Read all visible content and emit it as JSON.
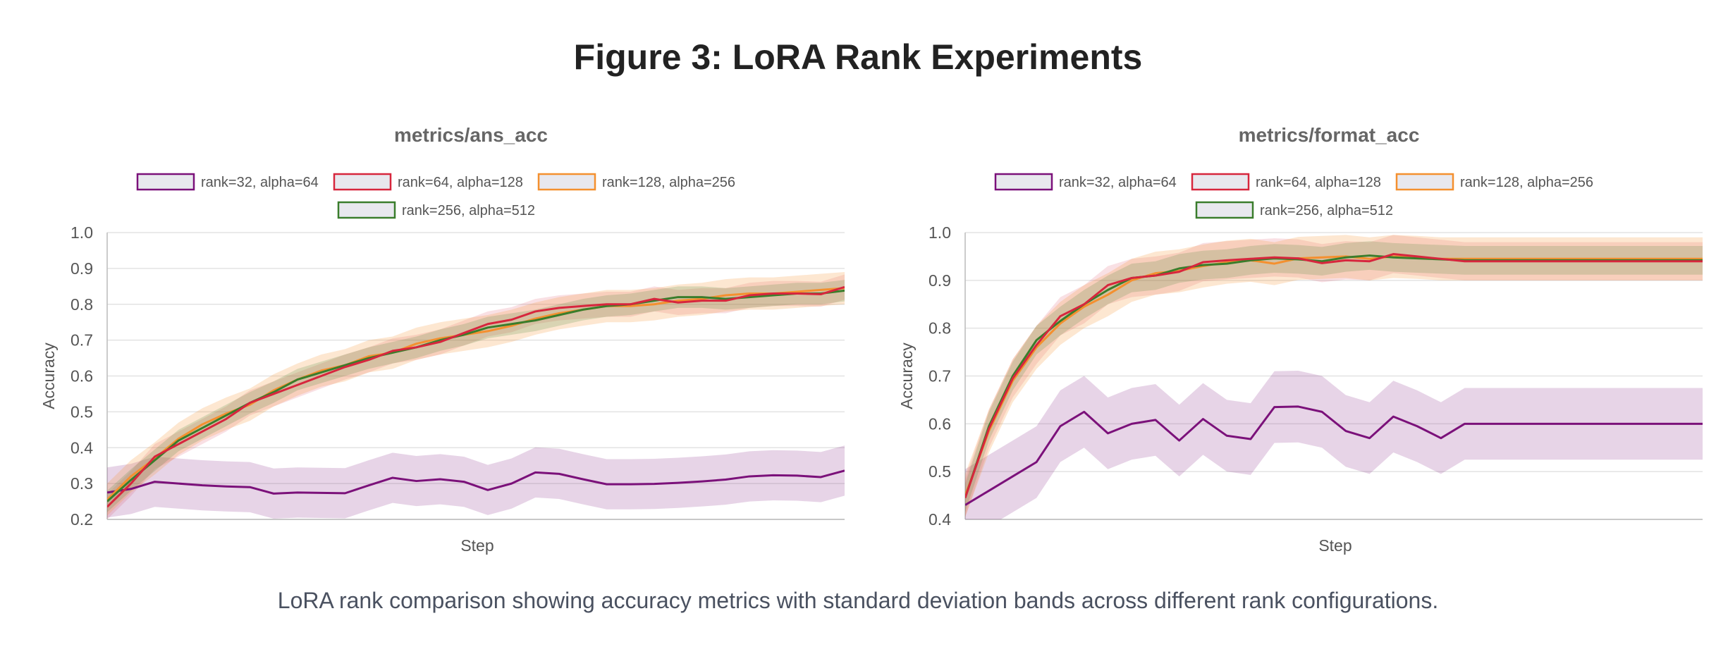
{
  "figure": {
    "title": "Figure 3: LoRA Rank Experiments",
    "caption": "LoRA rank comparison showing accuracy metrics with standard deviation bands across different rank configurations."
  },
  "colors": {
    "rank=32, alpha=64": "#7b117a",
    "rank=64, alpha=128": "#d7263d",
    "rank=128, alpha=256": "#f4902f",
    "rank=256, alpha=512": "#3a7d2c"
  },
  "chart_data": [
    {
      "type": "line",
      "title": "metrics/ans_acc",
      "xlabel": "Step",
      "ylabel": "Accuracy",
      "ylim": [
        0.2,
        1.0
      ],
      "yticks": [
        "0.2",
        "0.3",
        "0.4",
        "0.5",
        "0.6",
        "0.7",
        "0.8",
        "0.9",
        "1.0"
      ],
      "grid": true,
      "legend_position": "top",
      "x": [
        0,
        1,
        2,
        3,
        4,
        5,
        6,
        7,
        8,
        9,
        10,
        11,
        12,
        13,
        14,
        15,
        16,
        17,
        18,
        19,
        20,
        21,
        22,
        23,
        24,
        25,
        26,
        27,
        28,
        29,
        30,
        31
      ],
      "series": [
        {
          "name": "rank=32, alpha=64",
          "std": 0.07,
          "values": [
            0.275,
            0.285,
            0.305,
            0.3,
            0.295,
            0.292,
            0.29,
            0.272,
            0.275,
            0.274,
            0.273,
            0.295,
            0.316,
            0.307,
            0.312,
            0.305,
            0.282,
            0.3,
            0.331,
            0.327,
            0.312,
            0.298,
            0.298,
            0.299,
            0.302,
            0.306,
            0.311,
            0.32,
            0.323,
            0.322,
            0.318,
            0.336
          ]
        },
        {
          "name": "rank=64, alpha=128",
          "std": 0.035,
          "values": [
            0.235,
            0.3,
            0.375,
            0.41,
            0.445,
            0.48,
            0.525,
            0.55,
            0.575,
            0.6,
            0.625,
            0.645,
            0.67,
            0.68,
            0.695,
            0.72,
            0.745,
            0.757,
            0.78,
            0.79,
            0.795,
            0.8,
            0.8,
            0.815,
            0.805,
            0.81,
            0.81,
            0.825,
            0.83,
            0.83,
            0.828,
            0.848
          ]
        },
        {
          "name": "rank=128, alpha=256",
          "std": 0.045,
          "values": [
            0.255,
            0.32,
            0.37,
            0.425,
            0.465,
            0.495,
            0.52,
            0.56,
            0.59,
            0.615,
            0.63,
            0.655,
            0.665,
            0.69,
            0.705,
            0.715,
            0.725,
            0.74,
            0.76,
            0.775,
            0.785,
            0.795,
            0.795,
            0.8,
            0.81,
            0.815,
            0.825,
            0.83,
            0.83,
            0.835,
            0.84,
            0.845
          ]
        },
        {
          "name": "rank=256, alpha=512",
          "std": 0.03,
          "values": [
            0.25,
            0.31,
            0.365,
            0.42,
            0.455,
            0.49,
            0.525,
            0.555,
            0.59,
            0.61,
            0.63,
            0.65,
            0.665,
            0.68,
            0.7,
            0.715,
            0.735,
            0.745,
            0.755,
            0.77,
            0.785,
            0.795,
            0.8,
            0.81,
            0.82,
            0.82,
            0.815,
            0.82,
            0.825,
            0.83,
            0.83,
            0.838
          ]
        }
      ]
    },
    {
      "type": "line",
      "title": "metrics/format_acc",
      "xlabel": "Step",
      "ylabel": "Accuracy",
      "ylim": [
        0.4,
        1.0
      ],
      "yticks": [
        "0.4",
        "0.5",
        "0.6",
        "0.7",
        "0.8",
        "0.9",
        "1.0"
      ],
      "grid": true,
      "legend_position": "top",
      "x": [
        0,
        1,
        2,
        3,
        4,
        5,
        6,
        7,
        8,
        9,
        10,
        11,
        12,
        13,
        14,
        15,
        16,
        17,
        18,
        19,
        20,
        21,
        22,
        23,
        24,
        25,
        26,
        27,
        28,
        29,
        30,
        31
      ],
      "series": [
        {
          "name": "rank=32, alpha=64",
          "std": 0.075,
          "values": [
            0.43,
            0.46,
            0.49,
            0.52,
            0.595,
            0.625,
            0.58,
            0.6,
            0.608,
            0.565,
            0.61,
            0.575,
            0.568,
            0.635,
            0.636,
            0.625,
            0.585,
            0.57,
            0.615,
            0.595,
            0.57,
            0.6,
            0.6,
            0.6,
            0.6,
            0.6,
            0.6,
            0.6,
            0.6,
            0.6,
            0.6,
            0.6
          ]
        },
        {
          "name": "rank=64, alpha=128",
          "std": 0.04,
          "values": [
            0.445,
            0.59,
            0.695,
            0.765,
            0.825,
            0.85,
            0.89,
            0.905,
            0.91,
            0.918,
            0.938,
            0.942,
            0.945,
            0.948,
            0.946,
            0.936,
            0.942,
            0.94,
            0.955,
            0.95,
            0.945,
            0.94,
            0.94,
            0.94,
            0.94,
            0.94,
            0.94,
            0.94,
            0.94,
            0.94,
            0.94,
            0.94
          ]
        },
        {
          "name": "rank=128, alpha=256",
          "std": 0.045,
          "values": [
            0.45,
            0.585,
            0.69,
            0.76,
            0.81,
            0.845,
            0.87,
            0.9,
            0.915,
            0.92,
            0.93,
            0.938,
            0.942,
            0.935,
            0.946,
            0.948,
            0.95,
            0.945,
            0.95,
            0.948,
            0.945,
            0.945,
            0.945,
            0.945,
            0.945,
            0.945,
            0.945,
            0.945,
            0.945,
            0.945,
            0.945,
            0.945
          ]
        },
        {
          "name": "rank=256, alpha=512",
          "std": 0.03,
          "values": [
            0.445,
            0.595,
            0.7,
            0.775,
            0.815,
            0.85,
            0.88,
            0.905,
            0.91,
            0.925,
            0.932,
            0.935,
            0.942,
            0.946,
            0.944,
            0.94,
            0.948,
            0.952,
            0.948,
            0.946,
            0.944,
            0.942,
            0.942,
            0.942,
            0.942,
            0.942,
            0.942,
            0.942,
            0.942,
            0.942,
            0.942,
            0.942
          ]
        }
      ]
    }
  ]
}
